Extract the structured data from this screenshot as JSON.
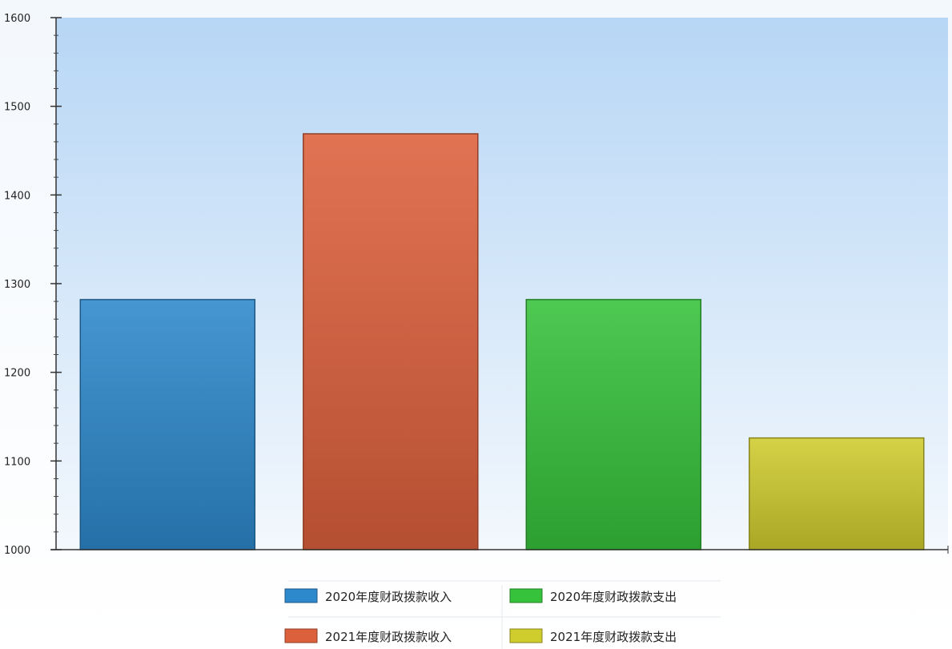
{
  "chart_data": {
    "type": "bar",
    "ylim": [
      1000,
      1600
    ],
    "yticks": [
      "1000",
      "1100",
      "1200",
      "1300",
      "1400",
      "1500",
      "1600"
    ],
    "grid": false,
    "legend_position": "bottom",
    "series": [
      {
        "name": "2020年度财政拨款收入",
        "value": 1282,
        "color": "#2d88cc"
      },
      {
        "name": "2021年度财政拨款收入",
        "value": 1469,
        "color": "#dd603c"
      },
      {
        "name": "2020年度财政拨款支出",
        "value": 1282,
        "color": "#36c23a"
      },
      {
        "name": "2021年度财政拨款支出",
        "value": 1126,
        "color": "#cfcc2e"
      }
    ]
  }
}
